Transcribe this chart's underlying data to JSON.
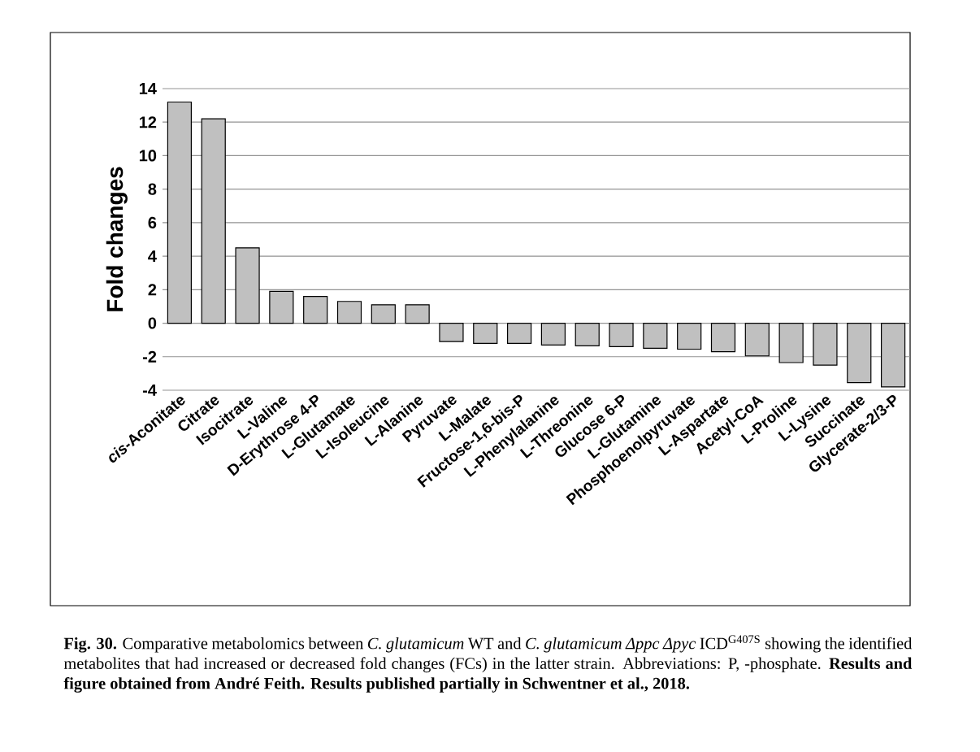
{
  "chart_data": {
    "type": "bar",
    "ylabel": "Fold changes",
    "categories": [
      "*cis*-Aconitate",
      "Citrate",
      "Isocitrate",
      "L-Valine",
      "D-Erythrose 4-P",
      "L-Glutamate",
      "L-Isoleucine",
      "L-Alanine",
      "Pyruvate",
      "L-Malate",
      "Fructose-1,6-bis-P",
      "L-Phenylalanine",
      "L-Threonine",
      "Glucose 6-P",
      "L-Glutamine",
      "Phosphoenolpyruvate",
      "L-Aspartate",
      "Acetyl-CoA",
      "L-Proline",
      "L-Lysine",
      "Succinate",
      "Glycerate-2/3-P"
    ],
    "values": [
      13.2,
      12.2,
      4.5,
      1.9,
      1.6,
      1.3,
      1.1,
      1.1,
      -1.1,
      -1.2,
      -1.2,
      -1.3,
      -1.35,
      -1.4,
      -1.5,
      -1.55,
      -1.7,
      -1.95,
      -2.35,
      -2.5,
      -3.55,
      -3.8
    ],
    "color": "#c0c0c0",
    "ylim": [
      -4,
      14
    ],
    "yticks": [
      -4,
      -2,
      0,
      2,
      4,
      6,
      8,
      10,
      12,
      14
    ],
    "grid": "y",
    "annotations": [
      "**Fig. 30.** Comparative metabolomics between *C. glutamicum* WT and *C. glutamicum* *Δppc* *Δpyc* ICD$^{G407S}$ showing the identified metabolites that had increased or decreased fold changes (FCs) in the latter strain. Abbreviations: P, -phosphate. **Results and figure obtained from André Feith. Results published partially in Schwentner et al., 2018.**"
    ]
  }
}
